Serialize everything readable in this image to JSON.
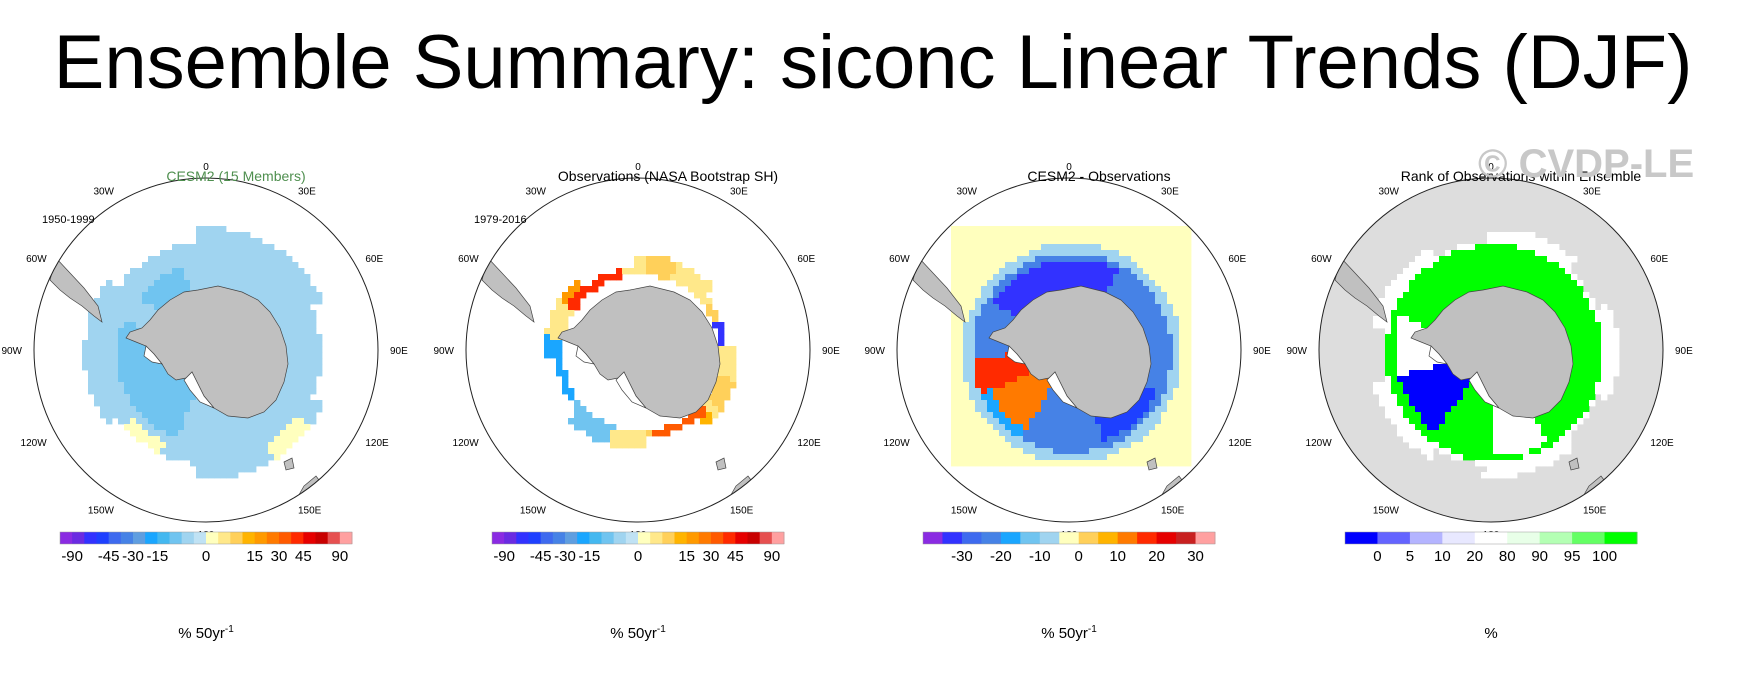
{
  "title": "Ensemble Summary: siconc Linear Trends (DJF)",
  "watermark": "© CVDP-LE",
  "colors": {
    "land": "#c0c0c0",
    "ocean_bg": "#ffffff",
    "rank_bg": "#dddddd"
  },
  "lon_labels": [
    "0",
    "30E",
    "60E",
    "90E",
    "120E",
    "150E",
    "180",
    "150W",
    "120W",
    "90W",
    "60W",
    "30W"
  ],
  "panels": [
    {
      "title": "CESM2 (15 Members)",
      "title_color": "#4f8f4f",
      "period": "1950-1999",
      "field": "cesm",
      "colorbar": {
        "colors": [
          "#8a2be2",
          "#6a2be2",
          "#3232ff",
          "#1e40ff",
          "#3e6aef",
          "#4682e6",
          "#5f9ee0",
          "#1aa6ff",
          "#44b8f0",
          "#70c4f0",
          "#a0d4f0",
          "#c0e2f4",
          "#ffffbe",
          "#ffe88a",
          "#ffd05a",
          "#ffb400",
          "#ff9a00",
          "#ff7a00",
          "#ff5a00",
          "#ff2a00",
          "#e60000",
          "#c80000",
          "#e65050",
          "#ffa0a0"
        ],
        "labels": [
          "-90",
          "-45",
          "-30",
          "-15",
          "0",
          "15",
          "30",
          "45",
          "90"
        ],
        "unit": "% 50yr",
        "unit_sup": "-1"
      }
    },
    {
      "title": "Observations (NASA Bootstrap SH)",
      "title_color": "#000000",
      "period": "1979-2016",
      "field": "obs",
      "colorbar": {
        "colors": [
          "#8a2be2",
          "#6a2be2",
          "#3232ff",
          "#1e40ff",
          "#3e6aef",
          "#4682e6",
          "#5f9ee0",
          "#1aa6ff",
          "#44b8f0",
          "#70c4f0",
          "#a0d4f0",
          "#c0e2f4",
          "#ffffbe",
          "#ffe88a",
          "#ffd05a",
          "#ffb400",
          "#ff9a00",
          "#ff7a00",
          "#ff5a00",
          "#ff2a00",
          "#e60000",
          "#c80000",
          "#e65050",
          "#ffa0a0"
        ],
        "labels": [
          "-90",
          "-45",
          "-30",
          "-15",
          "0",
          "15",
          "30",
          "45",
          "90"
        ],
        "unit": "% 50yr",
        "unit_sup": "-1"
      }
    },
    {
      "title": "CESM2 - Observations",
      "title_color": "#000000",
      "period": "",
      "field": "diff",
      "colorbar": {
        "colors": [
          "#8a2be2",
          "#3232ff",
          "#3e6aef",
          "#4682e6",
          "#1aa6ff",
          "#70c4f0",
          "#a0d4f0",
          "#ffffbe",
          "#ffd05a",
          "#ffb400",
          "#ff7a00",
          "#ff2a00",
          "#e60000",
          "#c82020",
          "#ffa0a0"
        ],
        "labels": [
          "-30",
          "-20",
          "-10",
          "0",
          "10",
          "20",
          "30"
        ],
        "unit": "% 50yr",
        "unit_sup": "-1"
      }
    },
    {
      "title": "Rank of Observations within Ensemble",
      "title_color": "#000000",
      "period": "",
      "field": "rank",
      "colorbar": {
        "colors": [
          "#0000ff",
          "#6464ff",
          "#b4b4ff",
          "#e8e8ff",
          "#ffffff",
          "#e8ffe8",
          "#b4ffb4",
          "#64ff64",
          "#00ff00"
        ],
        "labels": [
          "0",
          "5",
          "10",
          "20",
          "80",
          "90",
          "95",
          "100"
        ],
        "unit": "%",
        "unit_sup": ""
      }
    }
  ]
}
